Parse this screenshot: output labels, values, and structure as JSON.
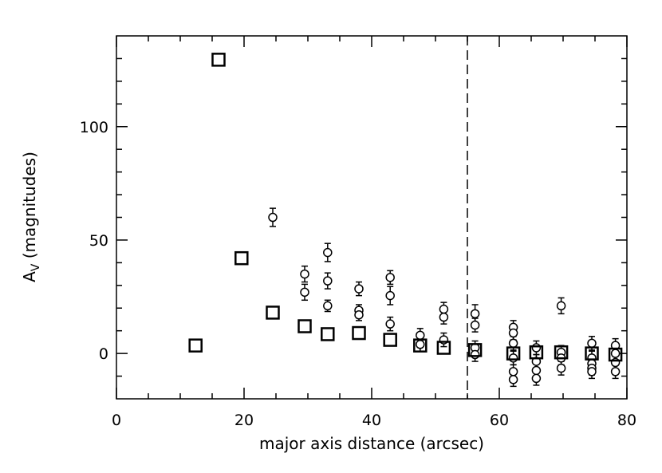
{
  "chart_data": {
    "type": "scatter",
    "title": "",
    "xlabel": "major axis distance (arcsec)",
    "ylabel_main": "A",
    "ylabel_sub": "V",
    "ylabel_rest": " (magnitudes)",
    "xlim": [
      0,
      80
    ],
    "ylim": [
      -20,
      140
    ],
    "xticks": [
      0,
      20,
      40,
      60,
      80
    ],
    "yticks": [
      0,
      50,
      100
    ],
    "xticks_minor": [
      5,
      10,
      15,
      25,
      30,
      35,
      45,
      50,
      55,
      65,
      70,
      75
    ],
    "yticks_minor": [
      -10,
      10,
      20,
      30,
      40,
      60,
      70,
      80,
      90,
      110,
      120,
      130
    ],
    "vline": {
      "x": 55,
      "style": "dashed"
    },
    "grid": false,
    "legend": "none",
    "series": [
      {
        "marker": "square",
        "points": [
          [
            12.4,
            3.5
          ],
          [
            16.0,
            129.5
          ],
          [
            19.6,
            42.0
          ],
          [
            24.5,
            18.0
          ],
          [
            29.5,
            12.0
          ],
          [
            33.1,
            8.5
          ],
          [
            38.0,
            9.0
          ],
          [
            42.9,
            6.0
          ],
          [
            47.6,
            3.5
          ],
          [
            51.3,
            2.5
          ],
          [
            56.2,
            1.5
          ],
          [
            62.2,
            0.0
          ],
          [
            65.8,
            0.5
          ],
          [
            69.7,
            0.5
          ],
          [
            74.5,
            0.0
          ],
          [
            78.2,
            -0.5
          ]
        ]
      },
      {
        "marker": "circle",
        "errorbars": true,
        "points": [
          [
            24.5,
            60.0,
            4.0
          ],
          [
            29.5,
            35.0,
            3.5
          ],
          [
            29.5,
            27.0,
            3.5
          ],
          [
            33.1,
            44.5,
            4.0
          ],
          [
            33.1,
            32.0,
            3.5
          ],
          [
            33.1,
            21.0,
            2.5
          ],
          [
            38.0,
            28.5,
            3.0
          ],
          [
            38.0,
            19.0,
            2.5
          ],
          [
            38.0,
            17.0,
            2.5
          ],
          [
            42.9,
            33.5,
            3.0
          ],
          [
            42.9,
            25.5,
            4.0
          ],
          [
            42.9,
            13.0,
            3.0
          ],
          [
            47.6,
            8.0,
            3.0
          ],
          [
            47.6,
            4.0,
            3.0
          ],
          [
            51.3,
            19.5,
            3.0
          ],
          [
            51.3,
            16.0,
            3.0
          ],
          [
            51.3,
            6.0,
            3.0
          ],
          [
            56.2,
            17.5,
            4.0
          ],
          [
            56.2,
            12.5,
            3.0
          ],
          [
            56.2,
            2.5,
            3.0
          ],
          [
            56.2,
            -0.5,
            3.0
          ],
          [
            62.2,
            11.5,
            3.0
          ],
          [
            62.2,
            9.0,
            3.0
          ],
          [
            62.2,
            4.5,
            3.0
          ],
          [
            62.2,
            -2.0,
            3.0
          ],
          [
            62.2,
            -8.0,
            3.0
          ],
          [
            62.2,
            -11.5,
            3.0
          ],
          [
            65.8,
            2.5,
            3.0
          ],
          [
            65.8,
            -3.5,
            3.0
          ],
          [
            65.8,
            -7.5,
            3.0
          ],
          [
            65.8,
            -11.0,
            3.0
          ],
          [
            69.7,
            21.0,
            3.5
          ],
          [
            69.7,
            0.5,
            3.0
          ],
          [
            69.7,
            -2.0,
            3.0
          ],
          [
            69.7,
            -6.5,
            3.0
          ],
          [
            74.5,
            4.5,
            3.0
          ],
          [
            74.5,
            -2.0,
            3.0
          ],
          [
            74.5,
            -4.5,
            3.0
          ],
          [
            74.5,
            -6.5,
            3.0
          ],
          [
            74.5,
            -8.0,
            3.0
          ],
          [
            78.2,
            3.5,
            3.0
          ],
          [
            78.2,
            0.0,
            3.0
          ],
          [
            78.2,
            -4.0,
            3.0
          ],
          [
            78.2,
            -8.0,
            3.0
          ]
        ]
      }
    ]
  }
}
